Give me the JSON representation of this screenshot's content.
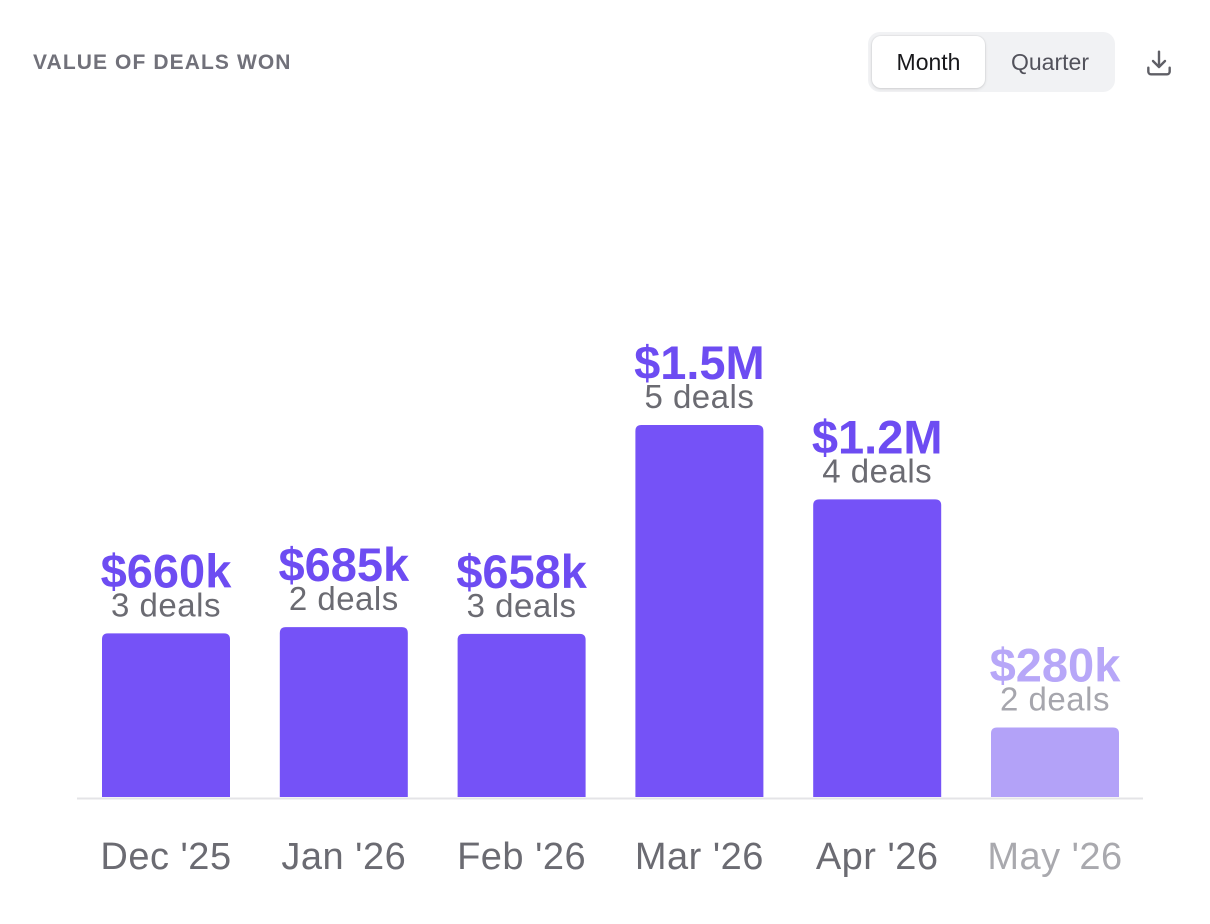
{
  "header": {
    "title": "VALUE OF DEALS WON",
    "period_toggle": {
      "options": [
        "Month",
        "Quarter"
      ],
      "selected": "Month"
    },
    "download_icon": "download-icon"
  },
  "colors": {
    "bar": "#7552f7",
    "bar_muted": "#b3a2f8",
    "value_label": "#6d4cf2",
    "value_label_muted": "#b7a7f8",
    "deals_label": "#6b6b72",
    "deals_label_muted": "#a6a6ad",
    "category_label": "#6b6b72",
    "category_label_muted": "#a9a9ae",
    "baseline": "#e4e4e7"
  },
  "chart_data": {
    "type": "bar",
    "title": "VALUE OF DEALS WON",
    "categories": [
      "Dec '25",
      "Jan '26",
      "Feb '26",
      "Mar '26",
      "Apr '26",
      "May '26"
    ],
    "values": [
      660000,
      685000,
      658000,
      1500000,
      1200000,
      280000
    ],
    "value_labels": [
      "$660k",
      "$685k",
      "$658k",
      "$1.5M",
      "$1.2M",
      "$280k"
    ],
    "deals": [
      3,
      2,
      3,
      5,
      4,
      2
    ],
    "deal_labels": [
      "3 deals",
      "2 deals",
      "3 deals",
      "5 deals",
      "4 deals",
      "2 deals"
    ],
    "muted": [
      false,
      false,
      false,
      false,
      false,
      true
    ],
    "ylim": [
      0,
      1500000
    ],
    "xlabel": "",
    "ylabel": "",
    "grid": false,
    "legend": "none"
  }
}
